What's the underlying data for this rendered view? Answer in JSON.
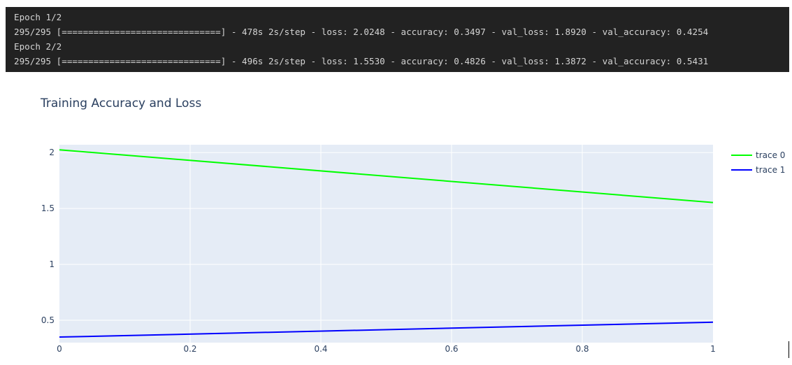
{
  "console": {
    "lines": [
      "Epoch 1/2",
      "295/295 [==============================] - 478s 2s/step - loss: 2.0248 - accuracy: 0.3497 - val_loss: 1.8920 - val_accuracy: 0.4254",
      "Epoch 2/2",
      "295/295 [==============================] - 496s 2s/step - loss: 1.5530 - accuracy: 0.4826 - val_loss: 1.3872 - val_accuracy: 0.5431"
    ]
  },
  "colors": {
    "console_bg": "#222222",
    "plot_bg": "#e5ecf6",
    "grid": "#ffffff",
    "text": "#2a3f5f",
    "trace0": "#00ff00",
    "trace1": "#0000ff"
  },
  "chart_data": {
    "type": "line",
    "title": "Training Accuracy and Loss",
    "xlabel": "",
    "ylabel": "",
    "xlim": [
      0,
      1
    ],
    "ylim": [
      0.3,
      2.07
    ],
    "x_ticks": [
      0,
      0.2,
      0.4,
      0.6,
      0.8,
      1
    ],
    "x_tick_labels": [
      "0",
      "0.2",
      "0.4",
      "0.6",
      "0.8",
      "1"
    ],
    "y_ticks": [
      0.5,
      1,
      1.5,
      2
    ],
    "y_tick_labels": [
      "0.5",
      "1",
      "1.5",
      "2"
    ],
    "grid": true,
    "legend_position": "top-right",
    "series": [
      {
        "name": "trace 0",
        "color": "#00ff00",
        "x": [
          0,
          1
        ],
        "y": [
          2.0248,
          1.553
        ]
      },
      {
        "name": "trace 1",
        "color": "#0000ff",
        "x": [
          0,
          1
        ],
        "y": [
          0.3497,
          0.4826
        ]
      }
    ]
  }
}
